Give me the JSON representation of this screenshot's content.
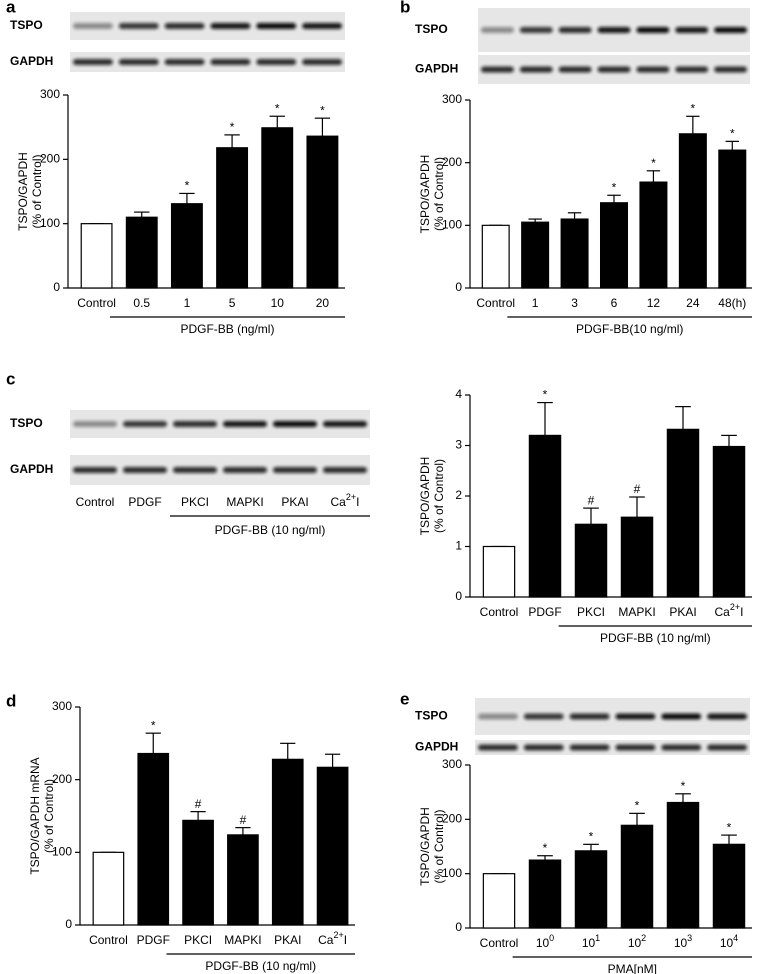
{
  "chart_data": [
    {
      "type": "bar",
      "panel": "a",
      "blot": {
        "labels": [
          "TSPO",
          "GAPDH"
        ]
      },
      "categories": [
        "Control",
        "0.5",
        "1",
        "5",
        "10",
        "20"
      ],
      "values": [
        100,
        110,
        131,
        218,
        249,
        236
      ],
      "errors": [
        0,
        8,
        16,
        20,
        18,
        28
      ],
      "significance": [
        null,
        null,
        "*",
        "*",
        "*",
        "*"
      ],
      "colors": [
        "#ffffff",
        "#000000",
        "#000000",
        "#000000",
        "#000000",
        "#000000"
      ],
      "y_label": [
        "TSPO/GAPDH",
        "(% of Control)"
      ],
      "x_label": "PDGF-BB (ng/ml)",
      "ylim": [
        0,
        300
      ],
      "yticks": [
        0,
        100,
        200,
        300
      ]
    },
    {
      "type": "bar",
      "panel": "b",
      "blot": {
        "labels": [
          "TSPO",
          "GAPDH"
        ]
      },
      "categories": [
        "Control",
        "1",
        "3",
        "6",
        "12",
        "24",
        "48(h)"
      ],
      "values": [
        100,
        105,
        110,
        136,
        169,
        246,
        220
      ],
      "errors": [
        0,
        5,
        10,
        12,
        18,
        28,
        14
      ],
      "significance": [
        null,
        null,
        null,
        "*",
        "*",
        "*",
        "*"
      ],
      "colors": [
        "#ffffff",
        "#000000",
        "#000000",
        "#000000",
        "#000000",
        "#000000",
        "#000000"
      ],
      "y_label": [
        "TSPO/GAPDH",
        "(% of Control)"
      ],
      "x_label": "PDGF-BB(10 ng/ml)",
      "ylim": [
        0,
        300
      ],
      "yticks": [
        0,
        100,
        200,
        300
      ]
    },
    {
      "type": "bar",
      "panel": "c",
      "blot": {
        "labels": [
          "TSPO",
          "GAPDH"
        ],
        "lanes": [
          "Control",
          "PDGF",
          "PKCI",
          "MAPKI",
          "PKAI",
          [
            "Ca",
            "2+",
            "I"
          ]
        ],
        "label": "PDGF-BB (10 ng/ml)"
      },
      "categories": [
        "Control",
        "PDGF",
        "PKCI",
        "MAPKI",
        "PKAI",
        [
          "Ca",
          "2+",
          "I"
        ]
      ],
      "values": [
        1,
        3.2,
        1.44,
        1.58,
        3.32,
        2.98
      ],
      "errors": [
        0,
        0.65,
        0.32,
        0.4,
        0.45,
        0.22
      ],
      "significance": [
        null,
        "*",
        "#",
        "#",
        null,
        null
      ],
      "colors": [
        "#ffffff",
        "#000000",
        "#000000",
        "#000000",
        "#000000",
        "#000000"
      ],
      "y_label": [
        "TSPO/GAPDH",
        "(% of Control)"
      ],
      "x_label": "PDGF-BB (10 ng/ml)",
      "ylim": [
        0,
        4
      ],
      "yticks": [
        0,
        1,
        2,
        3,
        4
      ]
    },
    {
      "type": "bar",
      "panel": "d",
      "categories": [
        "Control",
        "PDGF",
        "PKCI",
        "MAPKI",
        "PKAI",
        [
          "Ca",
          "2+",
          "I"
        ]
      ],
      "values": [
        100,
        236,
        144,
        124,
        228,
        217
      ],
      "errors": [
        0,
        28,
        12,
        10,
        22,
        18
      ],
      "significance": [
        null,
        "*",
        "#",
        "#",
        null,
        null
      ],
      "colors": [
        "#ffffff",
        "#000000",
        "#000000",
        "#000000",
        "#000000",
        "#000000"
      ],
      "y_label": [
        "TSPO/GAPDH mRNA",
        "(% of Control)"
      ],
      "x_label": "PDGF-BB (10 ng/ml)",
      "ylim": [
        0,
        300
      ],
      "yticks": [
        0,
        100,
        200,
        300
      ]
    },
    {
      "type": "bar",
      "panel": "e",
      "blot": {
        "labels": [
          "TSPO",
          "GAPDH"
        ]
      },
      "categories": [
        "Control",
        [
          "10",
          "0"
        ],
        [
          "10",
          "1"
        ],
        [
          "10",
          "2"
        ],
        [
          "10",
          "3"
        ],
        [
          "10",
          "4"
        ]
      ],
      "values": [
        100,
        125,
        142,
        189,
        231,
        154
      ],
      "errors": [
        0,
        8,
        12,
        22,
        16,
        17
      ],
      "significance": [
        null,
        "*",
        "*",
        "*",
        "*",
        "*"
      ],
      "colors": [
        "#ffffff",
        "#000000",
        "#000000",
        "#000000",
        "#000000",
        "#000000"
      ],
      "y_label": [
        "TSPO/GAPDH",
        "(% of Control)"
      ],
      "x_label": "PMA[nM]",
      "ylim": [
        0,
        300
      ],
      "yticks": [
        0,
        100,
        200,
        300
      ]
    }
  ]
}
